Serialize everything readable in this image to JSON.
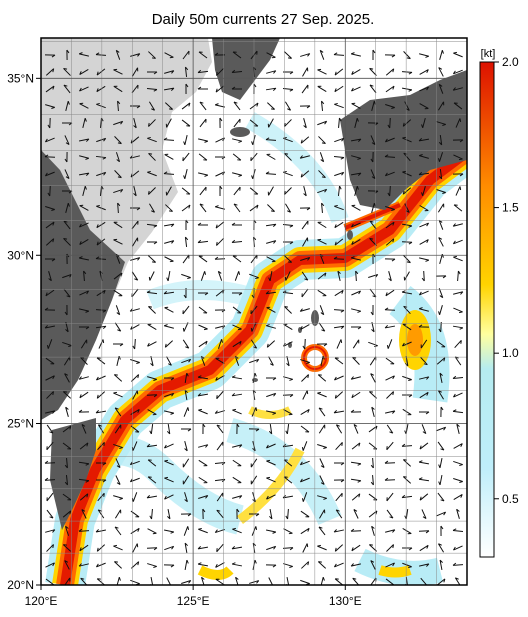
{
  "map": {
    "title": "Daily 50m currents 27 Sep. 2025.",
    "lon_range": [
      120,
      134
    ],
    "lat_range": [
      20,
      36.1
    ],
    "lon_ticks": [
      {
        "value": 120,
        "label": "120°E"
      },
      {
        "value": 125,
        "label": "125°E"
      },
      {
        "value": 130,
        "label": "130°E"
      }
    ],
    "lat_ticks": [
      {
        "value": 20,
        "label": "20°N"
      },
      {
        "value": 25,
        "label": "25°N"
      },
      {
        "value": 30,
        "label": "30°N"
      },
      {
        "value": 35,
        "label": "35°N"
      }
    ]
  },
  "colorbar": {
    "unit": "[kt]",
    "range": [
      0.3,
      2.0
    ],
    "ticks": [
      {
        "value": 2,
        "label": "2.0"
      },
      {
        "value": 1.5,
        "label": "1.5"
      },
      {
        "value": 1,
        "label": "1.0"
      },
      0.5
    ]
  }
}
